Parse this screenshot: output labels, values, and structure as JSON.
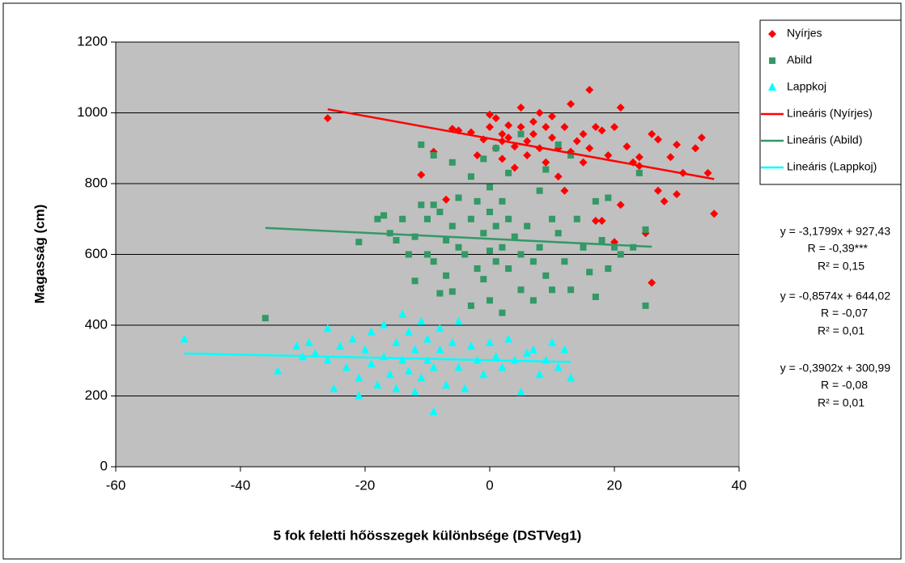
{
  "chart_data": {
    "type": "scatter",
    "x_label": "5 fok feletti hőösszegek különbsége (DSTVeg1)",
    "y_label": "Magasság  (cm)",
    "xlim": [
      -60,
      40
    ],
    "xticks": [
      -60,
      -40,
      -20,
      0,
      20,
      40
    ],
    "ylim": [
      0,
      1200
    ],
    "yticks": [
      0,
      200,
      400,
      600,
      800,
      1000,
      1200
    ],
    "grid": true,
    "legend": "right",
    "series": [
      {
        "name": "Nyírjes",
        "color": "#ff0000",
        "marker": "diamond",
        "x": [
          -26,
          -11,
          -9,
          -7,
          -6,
          -5,
          -3,
          -2,
          -1,
          0,
          0,
          1,
          1,
          2,
          2,
          3,
          3,
          4,
          4,
          5,
          5,
          6,
          6,
          7,
          7,
          8,
          8,
          9,
          9,
          10,
          10,
          11,
          11,
          12,
          12,
          13,
          13,
          14,
          15,
          16,
          16,
          17,
          17,
          18,
          18,
          19,
          20,
          20,
          21,
          21,
          22,
          23,
          24,
          25,
          26,
          26,
          27,
          27,
          28,
          29,
          30,
          30,
          31,
          33,
          34,
          35,
          36,
          24,
          15,
          2
        ],
        "values": [
          985,
          825,
          890,
          755,
          955,
          950,
          945,
          880,
          925,
          995,
          960,
          985,
          900,
          940,
          870,
          965,
          930,
          905,
          845,
          1015,
          960,
          920,
          880,
          975,
          940,
          1000,
          900,
          960,
          860,
          990,
          930,
          900,
          820,
          960,
          780,
          1025,
          890,
          920,
          860,
          1065,
          900,
          960,
          695,
          950,
          695,
          880,
          960,
          635,
          1015,
          740,
          905,
          860,
          850,
          660,
          520,
          940,
          925,
          780,
          750,
          875,
          910,
          770,
          830,
          900,
          930,
          830,
          715,
          875,
          940,
          920
        ],
        "trend": {
          "name": "Lineáris (Nyírjes)",
          "slope": -3.1799,
          "intercept": 927.43,
          "xlim": [
            -26,
            36
          ],
          "equation": "y = -3,1799x + 927,43",
          "r": "R = -0,39***",
          "r2": "R² = 0,15"
        }
      },
      {
        "name": "Abild",
        "color": "#339966",
        "marker": "square",
        "x": [
          -36,
          -21,
          -18,
          -17,
          -16,
          -15,
          -14,
          -13,
          -12,
          -12,
          -11,
          -11,
          -10,
          -10,
          -9,
          -9,
          -9,
          -8,
          -8,
          -7,
          -7,
          -6,
          -6,
          -6,
          -5,
          -5,
          -4,
          -3,
          -3,
          -3,
          -2,
          -2,
          -1,
          -1,
          -1,
          0,
          0,
          0,
          0,
          1,
          1,
          1,
          2,
          2,
          2,
          3,
          3,
          3,
          4,
          5,
          5,
          5,
          6,
          7,
          7,
          8,
          8,
          9,
          9,
          10,
          10,
          11,
          11,
          12,
          13,
          13,
          14,
          15,
          16,
          17,
          17,
          18,
          19,
          19,
          20,
          21,
          23,
          24,
          25,
          25
        ],
        "values": [
          420,
          635,
          700,
          710,
          660,
          640,
          700,
          600,
          650,
          525,
          910,
          740,
          700,
          600,
          880,
          740,
          580,
          720,
          490,
          640,
          540,
          860,
          680,
          495,
          760,
          620,
          600,
          820,
          700,
          455,
          750,
          560,
          870,
          660,
          530,
          790,
          720,
          610,
          470,
          900,
          680,
          580,
          750,
          620,
          435,
          830,
          700,
          560,
          650,
          940,
          600,
          500,
          680,
          580,
          470,
          780,
          620,
          840,
          540,
          700,
          500,
          910,
          660,
          580,
          880,
          500,
          700,
          620,
          550,
          750,
          480,
          640,
          760,
          560,
          620,
          600,
          620,
          830,
          670,
          455
        ],
        "trend": {
          "name": "Lineáris (Abild)",
          "slope": -0.8574,
          "intercept": 644.02,
          "xlim": [
            -36,
            26
          ],
          "equation": "y = -0,8574x + 644,02",
          "r": "R = -0,07",
          "r2": "R² = 0,01"
        }
      },
      {
        "name": "Lappkoj",
        "color": "#00ffff",
        "marker": "triangle",
        "x": [
          -49,
          -34,
          -31,
          -30,
          -29,
          -28,
          -26,
          -26,
          -25,
          -24,
          -23,
          -22,
          -21,
          -21,
          -20,
          -19,
          -19,
          -18,
          -17,
          -17,
          -16,
          -15,
          -15,
          -14,
          -14,
          -13,
          -13,
          -12,
          -12,
          -11,
          -11,
          -10,
          -10,
          -9,
          -9,
          -8,
          -8,
          -7,
          -6,
          -5,
          -5,
          -4,
          -3,
          -2,
          -1,
          0,
          1,
          2,
          3,
          4,
          5,
          6,
          7,
          8,
          9,
          10,
          11,
          12,
          13
        ],
        "values": [
          360,
          270,
          340,
          310,
          350,
          320,
          390,
          300,
          220,
          340,
          280,
          360,
          250,
          200,
          330,
          380,
          290,
          230,
          400,
          310,
          260,
          350,
          220,
          430,
          300,
          380,
          270,
          330,
          210,
          410,
          250,
          360,
          300,
          155,
          280,
          390,
          330,
          230,
          350,
          410,
          280,
          220,
          340,
          300,
          260,
          350,
          310,
          280,
          360,
          300,
          210,
          320,
          330,
          260,
          300,
          350,
          280,
          330,
          250
        ],
        "trend": {
          "name": "Lineáris (Lappkoj)",
          "slope": -0.3902,
          "intercept": 300.99,
          "xlim": [
            -49,
            13
          ],
          "equation": "y = -0,3902x + 300,99",
          "r": "R = -0,08",
          "r2": "R² = 0,01"
        }
      }
    ]
  }
}
